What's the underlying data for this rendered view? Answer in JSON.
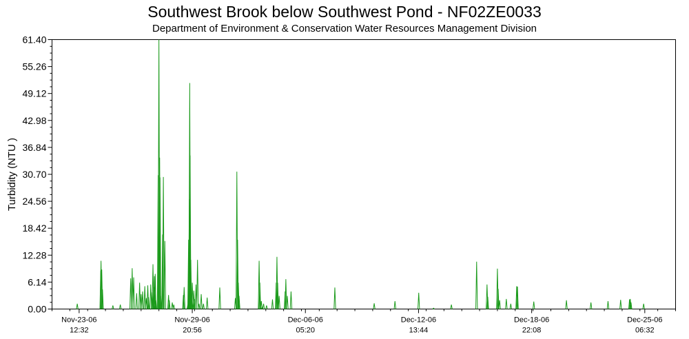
{
  "chart_data": {
    "type": "line",
    "title": "Southwest Brook below Southwest Pond - NF02ZE0033",
    "subtitle": "Department of Environment & Conservation Water Resources Management Division",
    "ylabel": "Turbidity (NTU )",
    "ylim": [
      0,
      61.4
    ],
    "yticks": [
      "0.00",
      "6.14",
      "12.28",
      "18.42",
      "24.56",
      "30.70",
      "36.84",
      "42.98",
      "49.12",
      "55.26",
      "61.40"
    ],
    "xlim": [
      "2006-11-22T00:00",
      "2006-12-27T00:00"
    ],
    "xticks": [
      {
        "date": "2006-11-23T12:32",
        "line1": "Nov-23-06",
        "line2": "12:32"
      },
      {
        "date": "2006-11-29T20:56",
        "line1": "Nov-29-06",
        "line2": "20:56"
      },
      {
        "date": "2006-12-06T05:20",
        "line1": "Dec-06-06",
        "line2": "05:20"
      },
      {
        "date": "2006-12-12T13:44",
        "line1": "Dec-12-06",
        "line2": "13:44"
      },
      {
        "date": "2006-12-18T22:08",
        "line1": "Dec-18-06",
        "line2": "22:08"
      },
      {
        "date": "2006-12-25T06:32",
        "line1": "Dec-25-06",
        "line2": "06:32"
      }
    ],
    "grid": false,
    "line_color": "#1a9a1a",
    "x": [
      "2006-11-23T10:00",
      "2006-11-24T17:40",
      "2006-11-24T18:00",
      "2006-11-24T19:00",
      "2006-11-24T20:00",
      "2006-11-25T10:00",
      "2006-11-25T20:00",
      "2006-11-26T10:00",
      "2006-11-26T12:00",
      "2006-11-26T14:00",
      "2006-11-26T18:00",
      "2006-11-26T22:00",
      "2006-11-27T00:00",
      "2006-11-27T02:00",
      "2006-11-27T05:00",
      "2006-11-27T07:00",
      "2006-11-27T09:00",
      "2006-11-27T10:00",
      "2006-11-27T13:00",
      "2006-11-27T15:00",
      "2006-11-27T16:00",
      "2006-11-27T17:00",
      "2006-11-27T18:00",
      "2006-11-27T18:30",
      "2006-11-27T19:00",
      "2006-11-27T19:30",
      "2006-11-27T20:00",
      "2006-11-27T23:00",
      "2006-11-28T00:00",
      "2006-11-28T01:00",
      "2006-11-28T01:30",
      "2006-11-28T02:30",
      "2006-11-28T05:00",
      "2006-11-28T06:00",
      "2006-11-28T08:00",
      "2006-11-28T13:00",
      "2006-11-28T14:00",
      "2006-11-28T18:00",
      "2006-11-28T20:00",
      "2006-11-29T09:00",
      "2006-11-29T10:00",
      "2006-11-29T15:00",
      "2006-11-29T16:00",
      "2006-11-29T16:30",
      "2006-11-29T17:00",
      "2006-11-29T17:30",
      "2006-11-29T18:00",
      "2006-11-29T19:00",
      "2006-11-29T20:00",
      "2006-11-29T21:00",
      "2006-11-29T22:00",
      "2006-11-29T23:00",
      "2006-11-30T00:00",
      "2006-11-30T02:00",
      "2006-11-30T04:00",
      "2006-11-30T06:00",
      "2006-11-30T09:00",
      "2006-11-30T12:00",
      "2006-11-30T17:00",
      "2006-12-01T10:00",
      "2006-12-02T07:00",
      "2006-12-02T09:00",
      "2006-12-02T10:00",
      "2006-12-02T11:00",
      "2006-12-02T12:00",
      "2006-12-03T15:00",
      "2006-12-03T16:00",
      "2006-12-03T18:00",
      "2006-12-03T19:00",
      "2006-12-03T21:00",
      "2006-12-04T01:00",
      "2006-12-04T09:00",
      "2006-12-04T14:00",
      "2006-12-04T15:00",
      "2006-12-04T16:00",
      "2006-12-04T18:00",
      "2006-12-05T02:00",
      "2006-12-05T03:00",
      "2006-12-05T05:00",
      "2006-12-05T10:00",
      "2006-12-07T21:00",
      "2006-12-10T02:00",
      "2006-12-11T06:00",
      "2006-12-12T14:00",
      "2006-12-13T10:00",
      "2006-12-14T10:00",
      "2006-12-15T20:00",
      "2006-12-16T10:00",
      "2006-12-16T11:00",
      "2006-12-17T00:00",
      "2006-12-17T01:00",
      "2006-12-17T03:00",
      "2006-12-17T12:00",
      "2006-12-17T18:00",
      "2006-12-18T02:00",
      "2006-12-18T03:00",
      "2006-12-19T01:00",
      "2006-12-20T21:00",
      "2006-12-22T06:00",
      "2006-12-23T05:00",
      "2006-12-23T22:00",
      "2006-12-24T10:00",
      "2006-12-24T11:00",
      "2006-12-24T12:00",
      "2006-12-25T05:00"
    ],
    "y": [
      1.2,
      8.8,
      11.0,
      9.0,
      4.5,
      0.8,
      1.0,
      7.0,
      9.3,
      7.2,
      3.6,
      6.0,
      3.4,
      4.0,
      5.2,
      2.5,
      5.4,
      2.7,
      5.6,
      3.8,
      10.2,
      5.0,
      7.5,
      2.4,
      8.0,
      1.2,
      2.0,
      30.5,
      61.4,
      34.5,
      30.0,
      3.0,
      17.0,
      30.1,
      15.5,
      3.2,
      2.0,
      1.5,
      1.0,
      3.2,
      5.0,
      1.0,
      15.8,
      8.0,
      25.0,
      51.5,
      35.0,
      11.2,
      3.0,
      6.0,
      1.5,
      4.2,
      2.3,
      5.6,
      11.2,
      1.2,
      3.4,
      1.2,
      2.6,
      4.9,
      2.5,
      31.3,
      15.8,
      6.0,
      3.0,
      11.0,
      6.0,
      1.8,
      0.5,
      1.2,
      0.8,
      2.2,
      6.0,
      11.9,
      6.0,
      3.0,
      4.0,
      6.8,
      3.0,
      4.0,
      4.9,
      1.3,
      1.8,
      3.7,
      0.2,
      1.0,
      10.8,
      5.6,
      2.8,
      9.2,
      4.6,
      2.0,
      2.3,
      1.2,
      5.2,
      5.1,
      1.7,
      2.0,
      1.5,
      1.8,
      2.1,
      2.2,
      2.3,
      1.5,
      1.2
    ]
  }
}
